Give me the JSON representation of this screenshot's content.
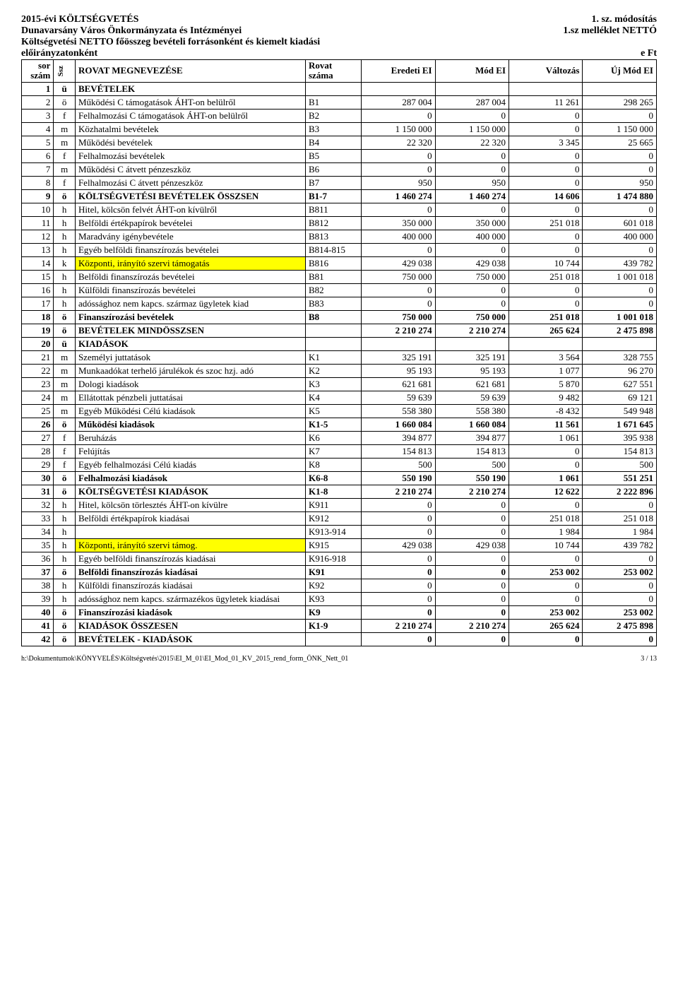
{
  "header": {
    "title_left": "2015-évi KÖLTSÉGVETÉS",
    "title_right": "1. sz. módosítás",
    "org": "Dunavarsány Város Önkormányzata és Intézményei",
    "attach": "1.sz melléklet NETTÓ",
    "desc1": "Költségvetési NETTO főösszeg bevételi forrásonként és kiemelt kiadási",
    "desc2": "előirányzatonként",
    "unit": "e Ft"
  },
  "columns": {
    "sor": "sor szám",
    "ssz": "Ssz",
    "name": "ROVAT MEGNEVEZÉSE",
    "rovat": "Rovat száma",
    "c1": "Eredeti EI",
    "c2": "Mód EI",
    "c3": "Változás",
    "c4": "Új Mód EI"
  },
  "rows": [
    {
      "n": 1,
      "s": "ü",
      "name": "BEVÉTELEK",
      "r": "",
      "v": [
        "",
        "",
        "",
        ""
      ],
      "bold": true
    },
    {
      "n": 2,
      "s": "ö",
      "name": "Működési C támogatások ÁHT-on belülről",
      "r": "B1",
      "v": [
        "287 004",
        "287 004",
        "11 261",
        "298 265"
      ]
    },
    {
      "n": 3,
      "s": "f",
      "name": "Felhalmozási C támogatások ÁHT-on belülről",
      "r": "B2",
      "v": [
        "0",
        "0",
        "0",
        "0"
      ]
    },
    {
      "n": 4,
      "s": "m",
      "name": "Közhatalmi bevételek",
      "r": "B3",
      "v": [
        "1 150 000",
        "1 150 000",
        "0",
        "1 150 000"
      ]
    },
    {
      "n": 5,
      "s": "m",
      "name": "Működési bevételek",
      "r": "B4",
      "v": [
        "22 320",
        "22 320",
        "3 345",
        "25 665"
      ]
    },
    {
      "n": 6,
      "s": "f",
      "name": "Felhalmozási bevételek",
      "r": "B5",
      "v": [
        "0",
        "0",
        "0",
        "0"
      ]
    },
    {
      "n": 7,
      "s": "m",
      "name": "Működési C átvett pénzeszköz",
      "r": "B6",
      "v": [
        "0",
        "0",
        "0",
        "0"
      ]
    },
    {
      "n": 8,
      "s": "f",
      "name": "Felhalmozási C átvett pénzeszköz",
      "r": "B7",
      "v": [
        "950",
        "950",
        "0",
        "950"
      ]
    },
    {
      "n": 9,
      "s": "ö",
      "name": "KÖLTSÉGVETÉSI BEVÉTELEK ÖSSZSEN",
      "r": "B1-7",
      "v": [
        "1 460 274",
        "1 460 274",
        "14 606",
        "1 474 880"
      ],
      "bold": true
    },
    {
      "n": 10,
      "s": "h",
      "name": "Hitel, kölcsön felvét ÁHT-on kívülről",
      "r": "B811",
      "v": [
        "0",
        "0",
        "0",
        "0"
      ]
    },
    {
      "n": 11,
      "s": "h",
      "name": "Belföldi értékpapírok bevételei",
      "r": "B812",
      "v": [
        "350 000",
        "350 000",
        "251 018",
        "601 018"
      ]
    },
    {
      "n": 12,
      "s": "h",
      "name": "Maradvány igénybevétele",
      "r": "B813",
      "v": [
        "400 000",
        "400 000",
        "0",
        "400 000"
      ]
    },
    {
      "n": 13,
      "s": "h",
      "name": "Egyéb belföldi finanszírozás bevételei",
      "r": "B814-815",
      "v": [
        "0",
        "0",
        "0",
        "0"
      ]
    },
    {
      "n": 14,
      "s": "k",
      "name": "Központi, irányító szervi támogatás",
      "r": "B816",
      "v": [
        "429 038",
        "429 038",
        "10 744",
        "439 782"
      ],
      "hl": true
    },
    {
      "n": 15,
      "s": "h",
      "name": "Belföldi finanszírozás bevételei",
      "r": "B81",
      "v": [
        "750 000",
        "750 000",
        "251 018",
        "1 001 018"
      ]
    },
    {
      "n": 16,
      "s": "h",
      "name": "Külföldi finanszírozás bevételei",
      "r": "B82",
      "v": [
        "0",
        "0",
        "0",
        "0"
      ]
    },
    {
      "n": 17,
      "s": "h",
      "name": "adóssághoz nem kapcs. származ ügyletek kiad",
      "r": "B83",
      "v": [
        "0",
        "0",
        "0",
        "0"
      ]
    },
    {
      "n": 18,
      "s": "ö",
      "name": "Finanszírozási bevételek",
      "r": "B8",
      "v": [
        "750 000",
        "750 000",
        "251 018",
        "1 001 018"
      ],
      "bold": true
    },
    {
      "n": 19,
      "s": "ö",
      "name": "BEVÉTELEK MINDÖSSZSEN",
      "r": "",
      "v": [
        "2 210 274",
        "2 210 274",
        "265 624",
        "2 475 898"
      ],
      "bold": true
    },
    {
      "n": 20,
      "s": "ü",
      "name": "KIADÁSOK",
      "r": "",
      "v": [
        "",
        "",
        "",
        ""
      ],
      "bold": true
    },
    {
      "n": 21,
      "s": "m",
      "name": "Személyi juttatások",
      "r": "K1",
      "v": [
        "325 191",
        "325 191",
        "3 564",
        "328 755"
      ]
    },
    {
      "n": 22,
      "s": "m",
      "name": "Munkaadókat terhelő járulékok és szoc hzj. adó",
      "r": "K2",
      "v": [
        "95 193",
        "95 193",
        "1 077",
        "96 270"
      ]
    },
    {
      "n": 23,
      "s": "m",
      "name": "Dologi kiadások",
      "r": "K3",
      "v": [
        "621 681",
        "621 681",
        "5 870",
        "627 551"
      ]
    },
    {
      "n": 24,
      "s": "m",
      "name": "Ellátottak pénzbeli juttatásai",
      "r": "K4",
      "v": [
        "59 639",
        "59 639",
        "9 482",
        "69 121"
      ]
    },
    {
      "n": 25,
      "s": "m",
      "name": "Egyéb Működési Célú kiadások",
      "r": "K5",
      "v": [
        "558 380",
        "558 380",
        "-8 432",
        "549 948"
      ]
    },
    {
      "n": 26,
      "s": "ö",
      "name": "Működési kiadások",
      "r": "K1-5",
      "v": [
        "1 660 084",
        "1 660 084",
        "11 561",
        "1 671 645"
      ],
      "bold": true
    },
    {
      "n": 27,
      "s": "f",
      "name": "Beruházás",
      "r": "K6",
      "v": [
        "394 877",
        "394 877",
        "1 061",
        "395 938"
      ]
    },
    {
      "n": 28,
      "s": "f",
      "name": "Felújítás",
      "r": "K7",
      "v": [
        "154 813",
        "154 813",
        "0",
        "154 813"
      ]
    },
    {
      "n": 29,
      "s": "f",
      "name": "Egyéb felhalmozási Célú kiadás",
      "r": "K8",
      "v": [
        "500",
        "500",
        "0",
        "500"
      ]
    },
    {
      "n": 30,
      "s": "ö",
      "name": "Felhalmozási kiadások",
      "r": "K6-8",
      "v": [
        "550 190",
        "550 190",
        "1 061",
        "551 251"
      ],
      "bold": true
    },
    {
      "n": 31,
      "s": "ö",
      "name": "KÖLTSÉGVETÉSI KIADÁSOK",
      "r": "K1-8",
      "v": [
        "2 210 274",
        "2 210 274",
        "12 622",
        "2 222 896"
      ],
      "bold": true
    },
    {
      "n": 32,
      "s": "h",
      "name": "Hitel, kölcsön törlesztés ÁHT-on kívülre",
      "r": "K911",
      "v": [
        "0",
        "0",
        "0",
        "0"
      ]
    },
    {
      "n": 33,
      "s": "h",
      "name": "Belföldi értékpapírok kiadásai",
      "r": "K912",
      "v": [
        "0",
        "0",
        "251 018",
        "251 018"
      ]
    },
    {
      "n": 34,
      "s": "h",
      "name": "",
      "r": "K913-914",
      "v": [
        "0",
        "0",
        "1 984",
        "1 984"
      ]
    },
    {
      "n": 35,
      "s": "h",
      "name": "Központi, irányító szervi támog.",
      "r": "K915",
      "v": [
        "429 038",
        "429 038",
        "10 744",
        "439 782"
      ],
      "hl": true
    },
    {
      "n": 36,
      "s": "h",
      "name": "Egyéb belföldi finanszírozás kiadásai",
      "r": "K916-918",
      "v": [
        "0",
        "0",
        "0",
        "0"
      ]
    },
    {
      "n": 37,
      "s": "ö",
      "name": "Belföldi finanszírozás kiadásai",
      "r": "K91",
      "v": [
        "0",
        "0",
        "253 002",
        "253 002"
      ],
      "bold": true
    },
    {
      "n": 38,
      "s": "h",
      "name": "Külföldi finanszírozás kiadásai",
      "r": "K92",
      "v": [
        "0",
        "0",
        "0",
        "0"
      ]
    },
    {
      "n": 39,
      "s": "h",
      "name": "adóssághoz nem kapcs. származékos ügyletek kiadásai",
      "r": "K93",
      "v": [
        "0",
        "0",
        "0",
        "0"
      ]
    },
    {
      "n": 40,
      "s": "ö",
      "name": "Finanszírozási kiadások",
      "r": "K9",
      "v": [
        "0",
        "0",
        "253 002",
        "253 002"
      ],
      "bold": true
    },
    {
      "n": 41,
      "s": "ö",
      "name": "KIADÁSOK ÖSSZESEN",
      "r": "K1-9",
      "v": [
        "2 210 274",
        "2 210 274",
        "265 624",
        "2 475 898"
      ],
      "bold": true
    },
    {
      "n": 42,
      "s": "ö",
      "name": "BEVÉTELEK - KIADÁSOK",
      "r": "",
      "v": [
        "0",
        "0",
        "0",
        "0"
      ],
      "bold": true
    }
  ],
  "footer": {
    "path": "h:\\Dokumentumok\\KÖNYVELÉS\\Költségvetés\\2015\\EI_M_01\\EI_Mod_01_KV_2015_rend_form_ÖNK_Nett_01",
    "page": "3 / 13"
  }
}
